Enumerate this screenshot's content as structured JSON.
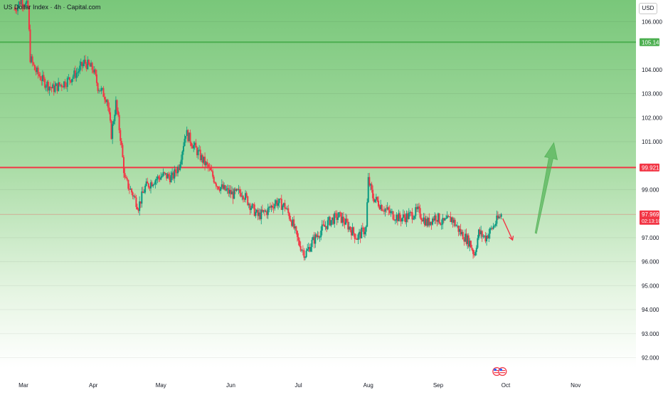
{
  "header": {
    "title": "US Dollar Index · 4h · Capital.com",
    "currency": "USD"
  },
  "chart_data": {
    "type": "candlestick",
    "timeframe": "4h",
    "ylim": [
      91.6,
      106.9
    ],
    "y_ticks": [
      "106.000",
      "104.000",
      "103.000",
      "102.000",
      "101.000",
      "99.000",
      "97.000",
      "96.000",
      "95.000",
      "94.000",
      "93.000",
      "92.000"
    ],
    "x_ticks": [
      "Mar",
      "Apr",
      "May",
      "Jun",
      "Jul",
      "Aug",
      "Sep",
      "Oct",
      "Nov"
    ],
    "price_path": [
      [
        "Feb 25",
        106.5
      ],
      [
        "Feb 28",
        106.9
      ],
      [
        "Mar 3",
        106.6
      ],
      [
        "Mar 4",
        104.5
      ],
      [
        "Mar 6",
        104.0
      ],
      [
        "Mar 10",
        103.5
      ],
      [
        "Mar 14",
        103.2
      ],
      [
        "Mar 20",
        103.5
      ],
      [
        "Mar 25",
        103.9
      ],
      [
        "Mar 28",
        104.3
      ],
      [
        "Apr 1",
        104.0
      ],
      [
        "Apr 3",
        103.3
      ],
      [
        "Apr 7",
        102.8
      ],
      [
        "Apr 9",
        101.3
      ],
      [
        "Apr 11",
        102.6
      ],
      [
        "Apr 13",
        101.2
      ],
      [
        "Apr 15",
        99.4
      ],
      [
        "Apr 18",
        98.9
      ],
      [
        "Apr 21",
        98.3
      ],
      [
        "Apr 24",
        99.1
      ],
      [
        "Apr 28",
        99.4
      ],
      [
        "May 2",
        99.6
      ],
      [
        "May 6",
        99.5
      ],
      [
        "May 9",
        100.0
      ],
      [
        "May 12",
        101.4
      ],
      [
        "May 15",
        100.9
      ],
      [
        "May 19",
        100.3
      ],
      [
        "May 22",
        99.9
      ],
      [
        "May 26",
        99.2
      ],
      [
        "May 29",
        99.0
      ],
      [
        "Jun 2",
        98.8
      ],
      [
        "Jun 6",
        98.9
      ],
      [
        "Jun 10",
        98.3
      ],
      [
        "Jun 13",
        97.9
      ],
      [
        "Jun 17",
        98.1
      ],
      [
        "Jun 21",
        98.5
      ],
      [
        "Jun 25",
        98.3
      ],
      [
        "Jun 28",
        97.7
      ],
      [
        "Jul 1",
        96.8
      ],
      [
        "Jul 4",
        96.3
      ],
      [
        "Jul 7",
        96.8
      ],
      [
        "Jul 11",
        97.3
      ],
      [
        "Jul 15",
        97.7
      ],
      [
        "Jul 19",
        97.9
      ],
      [
        "Jul 23",
        97.5
      ],
      [
        "Jul 27",
        97.0
      ],
      [
        "Jul 31",
        97.4
      ],
      [
        "Aug 1",
        99.4
      ],
      [
        "Aug 3",
        98.7
      ],
      [
        "Aug 7",
        98.3
      ],
      [
        "Aug 11",
        98.0
      ],
      [
        "Aug 15",
        97.8
      ],
      [
        "Aug 19",
        97.9
      ],
      [
        "Aug 23",
        98.1
      ],
      [
        "Aug 27",
        97.6
      ],
      [
        "Aug 31",
        97.9
      ],
      [
        "Sep 3",
        97.6
      ],
      [
        "Sep 7",
        97.8
      ],
      [
        "Sep 11",
        97.2
      ],
      [
        "Sep 15",
        96.8
      ],
      [
        "Sep 17",
        96.3
      ],
      [
        "Sep 19",
        97.2
      ],
      [
        "Sep 22",
        97.0
      ],
      [
        "Sep 25",
        97.4
      ],
      [
        "Sep 27",
        97.7
      ],
      [
        "Sep 29",
        97.96
      ]
    ],
    "horizontal_levels": [
      {
        "value": 105.142,
        "label": "105.142",
        "color": "#4caf50"
      },
      {
        "value": 99.921,
        "label": "99.921",
        "color": "#f23645"
      },
      {
        "value": 97.969,
        "label": "97.969",
        "countdown": "02:13:10",
        "color": "#f23645"
      }
    ],
    "annotations": [
      {
        "type": "arrow",
        "direction": "down",
        "color": "#f23645"
      },
      {
        "type": "arrow",
        "direction": "up",
        "color": "#4caf50"
      }
    ],
    "colors": {
      "up": "#089981",
      "down": "#f23645",
      "zone": "#4caf50",
      "background_top": "#79c77a",
      "background_bottom": "#ffffff"
    }
  }
}
